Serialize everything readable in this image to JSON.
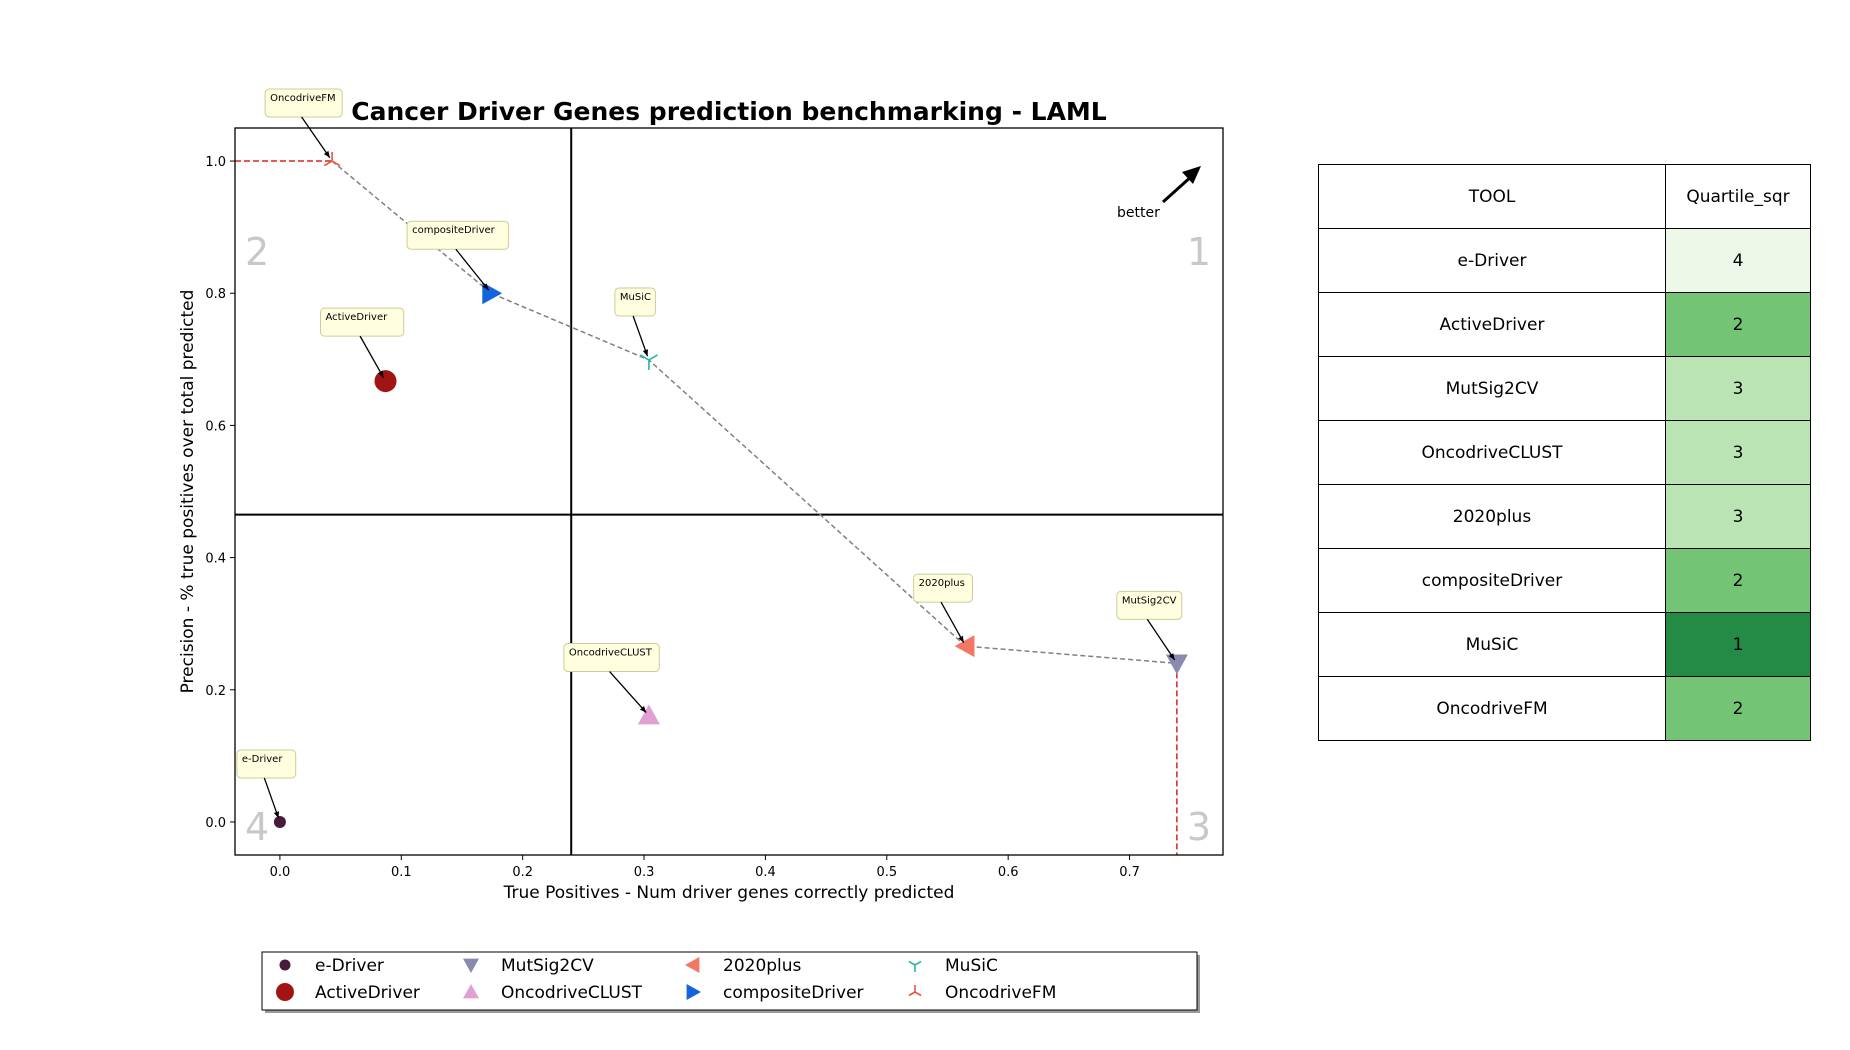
{
  "chart_data": {
    "type": "scatter",
    "title": "Cancer Driver Genes prediction benchmarking - LAML",
    "xlabel": "True Positives - Num driver genes correctly predicted",
    "ylabel": "Precision - % true positives over total predicted",
    "xlim": [
      -0.037,
      0.777
    ],
    "ylim": [
      -0.05,
      1.05
    ],
    "xticks": [
      "0.0",
      "0.1",
      "0.2",
      "0.3",
      "0.4",
      "0.5",
      "0.6",
      "0.7"
    ],
    "yticks": [
      "0.0",
      "0.2",
      "0.4",
      "0.6",
      "0.8",
      "1.0"
    ],
    "quadrant_lines": {
      "x": 0.24,
      "y": 0.465
    },
    "quadrant_labels": [
      "1",
      "2",
      "3",
      "4"
    ],
    "better_label": "better",
    "pareto_front": [
      "OncodriveFM",
      "compositeDriver",
      "MuSiC",
      "2020plus",
      "MutSig2CV"
    ],
    "series": [
      {
        "name": "e-Driver",
        "x": 0.0,
        "y": 0.0,
        "marker": "dot",
        "color": "#4a1a3c"
      },
      {
        "name": "ActiveDriver",
        "x": 0.087,
        "y": 0.667,
        "marker": "circle",
        "color": "#a11413"
      },
      {
        "name": "MutSig2CV",
        "x": 0.739,
        "y": 0.24,
        "marker": "triangle-down",
        "color": "#8a8ab0"
      },
      {
        "name": "OncodriveCLUST",
        "x": 0.304,
        "y": 0.161,
        "marker": "triangle-up",
        "color": "#dea1d2"
      },
      {
        "name": "2020plus",
        "x": 0.565,
        "y": 0.266,
        "marker": "triangle-left",
        "color": "#f47766"
      },
      {
        "name": "compositeDriver",
        "x": 0.174,
        "y": 0.8,
        "marker": "triangle-right",
        "color": "#1264dc"
      },
      {
        "name": "MuSiC",
        "x": 0.304,
        "y": 0.699,
        "marker": "tri-down",
        "color": "#2bb7a9"
      },
      {
        "name": "OncodriveFM",
        "x": 0.043,
        "y": 1.0,
        "marker": "tri-up",
        "color": "#e2583e"
      }
    ]
  },
  "table": {
    "headers": [
      "TOOL",
      "Quartile_sqr"
    ],
    "rows": [
      {
        "tool": "e-Driver",
        "quartile": "4",
        "color": "#edf8e9"
      },
      {
        "tool": "ActiveDriver",
        "quartile": "2",
        "color": "#74c476"
      },
      {
        "tool": "MutSig2CV",
        "quartile": "3",
        "color": "#bae4b3"
      },
      {
        "tool": "OncodriveCLUST",
        "quartile": "3",
        "color": "#bae4b3"
      },
      {
        "tool": "2020plus",
        "quartile": "3",
        "color": "#bae4b3"
      },
      {
        "tool": "compositeDriver",
        "quartile": "2",
        "color": "#74c476"
      },
      {
        "tool": "MuSiC",
        "quartile": "1",
        "color": "#238b45"
      },
      {
        "tool": "OncodriveFM",
        "quartile": "2",
        "color": "#74c476"
      }
    ]
  }
}
